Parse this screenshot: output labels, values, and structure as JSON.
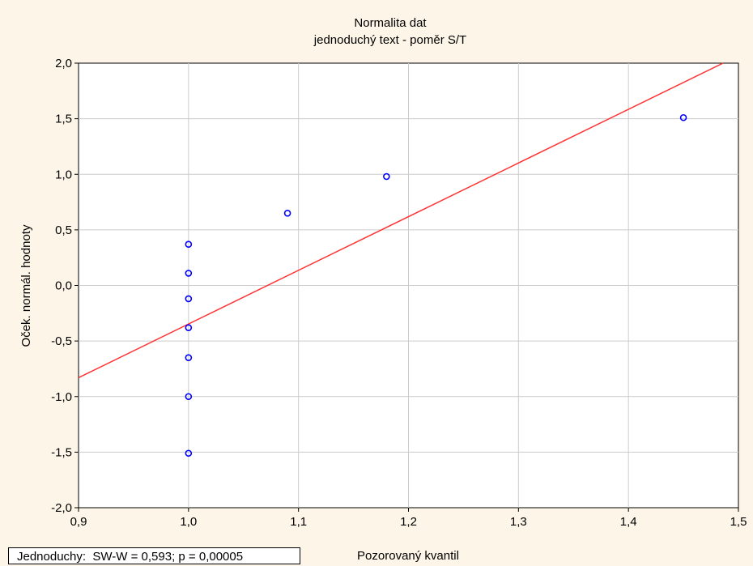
{
  "chart_data": {
    "type": "scatter",
    "title": "Normalita dat",
    "subtitle": "jednoduchý text - poměr S/T",
    "xlabel": "Pozorovaný kvantil",
    "ylabel": "Oček. normál. hodnoty",
    "xlim": [
      0.9,
      1.5
    ],
    "ylim": [
      -2.0,
      2.0
    ],
    "xticks": [
      "0,9",
      "1,0",
      "1,1",
      "1,2",
      "1,3",
      "1,4",
      "1,5"
    ],
    "yticks": [
      "2,0",
      "1,5",
      "1,0",
      "0,5",
      "0,0",
      "-0,5",
      "-1,0",
      "-1,5",
      "-2,0"
    ],
    "grid": true,
    "points": [
      {
        "x": 1.0,
        "y": -1.51
      },
      {
        "x": 1.0,
        "y": -1.0
      },
      {
        "x": 1.0,
        "y": -0.65
      },
      {
        "x": 1.0,
        "y": -0.38
      },
      {
        "x": 1.0,
        "y": -0.12
      },
      {
        "x": 1.0,
        "y": 0.11
      },
      {
        "x": 1.0,
        "y": 0.37
      },
      {
        "x": 1.09,
        "y": 0.65
      },
      {
        "x": 1.18,
        "y": 0.98
      },
      {
        "x": 1.45,
        "y": 1.51
      }
    ],
    "fit_line": {
      "x": [
        0.9,
        1.486
      ],
      "y": [
        -0.83,
        2.0
      ]
    },
    "colors": {
      "points": "#0000ff",
      "line": "#ff3333",
      "grid": "#cccccc",
      "background": "#fdf6e8",
      "plot_background": "#ffffff"
    },
    "legend": "Jednoduchy:  SW-W = 0,593; p = 0,00005"
  }
}
